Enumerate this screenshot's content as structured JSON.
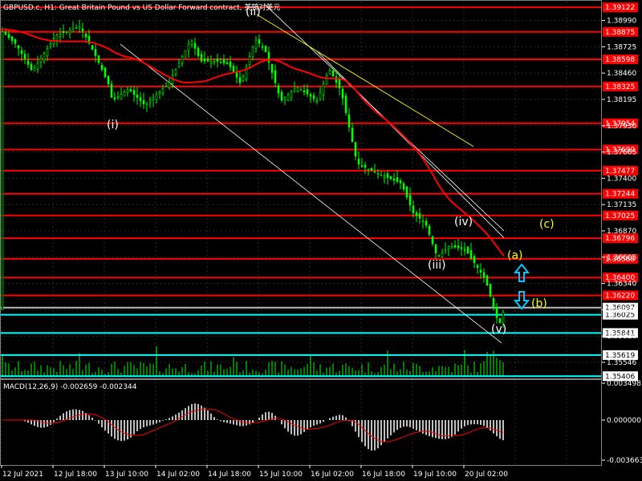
{
  "header": {
    "title": "GBPUSD.c, H1: Great Britain Pound vs US Dollar Forward contract, 英镑对美元"
  },
  "macd": {
    "label": "MACD(12,26,9) -0.002659 -0.002344",
    "ticks": [
      "0.003498",
      "0.000000",
      "-0.003663"
    ]
  },
  "chart_data": {
    "type": "candlestick",
    "symbol": "GBPUSD.c",
    "timeframe": "H1",
    "price_axis_ticks": [
      "1.38990",
      "1.38725",
      "1.38460",
      "1.38195",
      "1.37930",
      "1.37665",
      "1.37400",
      "1.37135",
      "1.36870",
      "1.36605",
      "1.36340",
      "1.36075",
      "1.35810",
      "1.35546"
    ],
    "price_range": [
      1.354,
      1.3918
    ],
    "time_axis_labels": [
      "12 Jul 2021",
      "12 Jul 18:00",
      "13 Jul 10:00",
      "14 Jul 02:00",
      "14 Jul 18:00",
      "15 Jul 10:00",
      "16 Jul 02:00",
      "16 Jul 18:00",
      "19 Jul 10:00",
      "20 Jul 02:00"
    ],
    "red_levels": [
      "1.39122",
      "1.38875",
      "1.38598",
      "1.38325",
      "1.37954",
      "1.37690",
      "1.37477",
      "1.37244",
      "1.37025",
      "1.36796",
      "1.36588",
      "1.36400",
      "1.36220"
    ],
    "cyan_levels": [
      "1.36025",
      "1.35841",
      "1.35619",
      "1.35406"
    ],
    "current_price": "1.36097",
    "wave_labels": [
      {
        "text": "(i)",
        "color": "#ffffff"
      },
      {
        "text": "(ii)",
        "color": "#ffffff"
      },
      {
        "text": "(iii)",
        "color": "#ffffff"
      },
      {
        "text": "(iv)",
        "color": "#ffffff"
      },
      {
        "text": "(v)",
        "color": "#ffffff"
      },
      {
        "text": "(a)",
        "color": "#ffff00"
      },
      {
        "text": "(b)",
        "color": "#ffff00"
      },
      {
        "text": "(c)",
        "color": "#ffff00"
      }
    ],
    "colors": {
      "candles": "#00ff00",
      "moving_average": "#ff0000",
      "red_levels": "#ff0000",
      "cyan_levels": "#00ffff",
      "volume": "#00ff00",
      "macd_histogram": "#c0c0c0",
      "macd_signal": "#ff0000",
      "channel": "#ffffff",
      "trendline": "#ffff00",
      "arrows": "#00c8ff"
    },
    "grid": true
  }
}
